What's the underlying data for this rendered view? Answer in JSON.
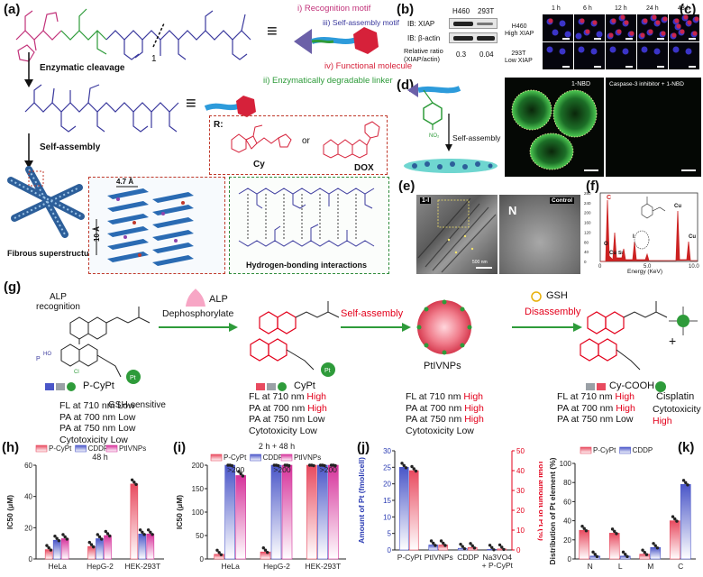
{
  "panel_a": {
    "label": "(a)",
    "molecule_number": "1",
    "legend": {
      "recognition": "i) Recognition motif",
      "selfassembly": "iii) Self-assembly motif",
      "linker": "ii) Enzymatically degradable linker",
      "functional": "iv) Functional molecule"
    },
    "arrow1": "Enzymatic cleavage",
    "arrow2": "Self-assembly",
    "r_label": "R:",
    "cy_label": "Cy",
    "or_label": "or",
    "dox_label": "DOX",
    "fibrous_label": "Fibrous superstructure",
    "dist1": "4.7 Å",
    "dist2": "10 Å",
    "hbond_label": "Hydrogen-bonding interactions",
    "equiv": "≡"
  },
  "panel_b": {
    "label": "(b)",
    "col1": "H460",
    "col2": "293T",
    "row1": "IB: XIAP",
    "row2": "IB: β-actin",
    "ratio_label": "Relative ratio\n(XIAP/actin)",
    "ratio1": "0.3",
    "ratio2": "0.04"
  },
  "panel_c": {
    "label": "(c)",
    "times": [
      "1 h",
      "6 h",
      "12 h",
      "24 h",
      "48 h"
    ],
    "row1": "H460\nHigh XIAP",
    "row2": "293T\nLow XIAP"
  },
  "panel_d": {
    "label": "(d)",
    "arrow": "Self-assembly",
    "img1": "1-NBD",
    "img2": "Caspase-3 inhibitor + 1-NBD"
  },
  "panel_e": {
    "label": "(e)",
    "img1": "1-I",
    "img2": "Control",
    "nucleus": "N",
    "scale": "500 nm"
  },
  "panel_f": {
    "label": "(f)",
    "xlabel": "Energy (KeV)",
    "peaks": [
      "C",
      "O",
      "Cu",
      "Si",
      "Cu",
      "I",
      "Cu"
    ],
    "tick_labels_x": [
      "0",
      "5.0",
      "10.0"
    ],
    "tick_labels_y": [
      "0",
      "40",
      "80",
      "120",
      "160",
      "200",
      "240",
      "280"
    ]
  },
  "panel_g": {
    "label": "(g)",
    "alp_recognition": "ALP\nrecognition",
    "alp": "ALP",
    "dephos": "Dephosphorylate",
    "self_assembly": "Self-assembly",
    "gsh": "GSH",
    "disassembly": "Disassembly",
    "gsh_sensitive": "GSH-sensitive",
    "compounds": [
      "P-CyPt",
      "CyPt",
      "PtIVNPs",
      "Cy-COOH",
      "Cisplatin"
    ],
    "plus": "+",
    "props": [
      {
        "lines": [
          {
            "k": "FL at 710 nm",
            "v": "Low",
            "hi": false
          },
          {
            "k": "PA at 700 nm",
            "v": "Low",
            "hi": false
          },
          {
            "k": "PA at 750 nm",
            "v": "Low",
            "hi": false
          },
          {
            "k": "Cytotoxicity",
            "v": "Low",
            "hi": false
          }
        ]
      },
      {
        "lines": [
          {
            "k": "FL at 710 nm",
            "v": "High",
            "hi": true
          },
          {
            "k": "PA at 700 nm",
            "v": "High",
            "hi": true
          },
          {
            "k": "PA at 750 nm",
            "v": "Low",
            "hi": false
          },
          {
            "k": "Cytotoxicity",
            "v": "Low",
            "hi": false
          }
        ]
      },
      {
        "lines": [
          {
            "k": "FL at 710 nm",
            "v": "High",
            "hi": true
          },
          {
            "k": "PA at 700 nm",
            "v": "High",
            "hi": true
          },
          {
            "k": "PA at 750 nm",
            "v": "High",
            "hi": true
          },
          {
            "k": "Cytotoxicity",
            "v": "Low",
            "hi": false
          }
        ]
      },
      {
        "lines": [
          {
            "k": "FL at 710 nm",
            "v": "High",
            "hi": true
          },
          {
            "k": "PA at 700 nm",
            "v": "High",
            "hi": true
          },
          {
            "k": "PA at 750 nm",
            "v": "Low",
            "hi": false
          }
        ]
      },
      {
        "lines": [
          {
            "k": "Cytotoxicity",
            "v": "",
            "hi": false
          },
          {
            "k": "",
            "v": "High",
            "hi": true
          }
        ]
      }
    ]
  },
  "chart_data": [
    {
      "panel": "(h)",
      "type": "bar",
      "title": "48 h",
      "ylabel": "IC50 (μM)",
      "ylim": [
        0,
        60
      ],
      "yticks": [
        0,
        20,
        40,
        60
      ],
      "categories": [
        "HeLa",
        "HepG-2",
        "HEK-293T"
      ],
      "series": [
        {
          "name": "P-CyPt",
          "values": [
            6,
            8,
            48
          ],
          "color": "#e84a5f"
        },
        {
          "name": "CDDP",
          "values": [
            12,
            13,
            16
          ],
          "color": "#4a56c8"
        },
        {
          "name": "PtIVNPs",
          "values": [
            13,
            15,
            16
          ],
          "color": "#d6339b"
        }
      ],
      "legend": "top"
    },
    {
      "panel": "(i)",
      "type": "bar",
      "title": "2 h + 48 h",
      "ylabel": "IC50 (μM)",
      "ylim": [
        0,
        200
      ],
      "yticks": [
        0,
        50,
        100,
        150,
        200
      ],
      "categories": [
        "HeLa",
        "HepG-2",
        "HEK-293T"
      ],
      "series": [
        {
          "name": "P-CyPt",
          "values": [
            10,
            15,
            200
          ],
          "color": "#e84a5f"
        },
        {
          "name": "CDDP",
          "values": [
            200,
            200,
            200
          ],
          "color": "#4a56c8"
        },
        {
          "name": "PtIVNPs",
          "values": [
            178,
            200,
            200
          ],
          "color": "#d6339b"
        }
      ],
      "annotations": [
        ">200",
        ">200",
        ">200"
      ],
      "legend": "top"
    },
    {
      "panel": "(j)",
      "type": "bar",
      "ylabel": "Amount of Pt (fmol/cell)",
      "y2label": "Total amount of Pt (%)",
      "ylim": [
        0,
        30
      ],
      "y2lim": [
        0,
        50
      ],
      "yticks": [
        0,
        5,
        10,
        15,
        20,
        25,
        30
      ],
      "y2ticks": [
        0,
        10,
        20,
        30,
        40,
        50
      ],
      "categories": [
        "P-CyPt",
        "PtIVNPs",
        "CDDP",
        "Na3VO4\n+ P-CyPt"
      ],
      "series": [
        {
          "name": "Amount of Pt",
          "values": [
            25,
            1.5,
            0.5,
            0.2
          ],
          "color": "#4a56c8"
        },
        {
          "name": "Total amount of Pt",
          "values": [
            40,
            2.5,
            1.2,
            0.5
          ],
          "color": "#e84a5f"
        }
      ]
    },
    {
      "panel": "(k)",
      "type": "bar",
      "ylabel": "Distribution of Pt element (%)",
      "ylim": [
        0,
        100
      ],
      "yticks": [
        0,
        20,
        40,
        60,
        80,
        100
      ],
      "categories": [
        "N",
        "L",
        "M",
        "C"
      ],
      "series": [
        {
          "name": "P-CyPt",
          "values": [
            30,
            27,
            5,
            40
          ],
          "color": "#e84a5f"
        },
        {
          "name": "CDDP",
          "values": [
            3,
            3,
            12,
            78
          ],
          "color": "#4a56c8"
        }
      ],
      "legend": "top"
    }
  ]
}
